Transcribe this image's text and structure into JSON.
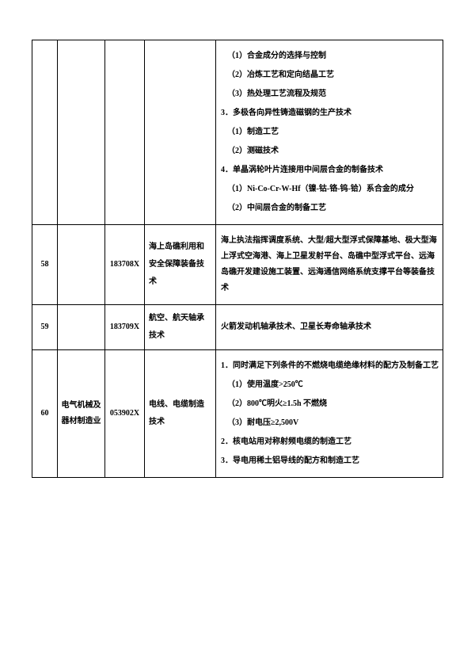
{
  "rows": [
    {
      "num": "",
      "cat": "",
      "code": "",
      "name": "",
      "desc_items": [
        {
          "lvl": 2,
          "t": "（1）合金成分的选择与控制"
        },
        {
          "lvl": 2,
          "t": "（2）冶炼工艺和定向结晶工艺"
        },
        {
          "lvl": 2,
          "t": "（3）热处理工艺流程及规范"
        },
        {
          "lvl": 1,
          "t": "3．多极各向异性铸造磁钢的生产技术"
        },
        {
          "lvl": 2,
          "t": "（1）制造工艺"
        },
        {
          "lvl": 2,
          "t": "（2）测磁技术"
        },
        {
          "lvl": 1,
          "t": "4．单晶涡轮叶片连接用中间层合金的制备技术"
        },
        {
          "lvl": 2,
          "t": "（1）Ni-Co-Cr-W-Hf（镍-钴-铬-钨-铪）系合金的成分"
        },
        {
          "lvl": 2,
          "t": "（2）中间层合金的制备工艺"
        }
      ]
    },
    {
      "num": "58",
      "cat": "",
      "code": "183708X",
      "name": "海上岛礁利用和安全保障装备技术",
      "desc_items": [
        {
          "lvl": 0,
          "t": "海上执法指挥调度系统、大型/超大型浮式保障基地、极大型海上浮式空海港、海上卫星发射平台、岛礁中型浮式平台、远海岛礁开发建设施工装置、远海通信网络系统支撑平台等装备技术"
        }
      ]
    },
    {
      "num": "59",
      "cat": "",
      "code": "183709X",
      "name": "航空、航天轴承技术",
      "desc_items": [
        {
          "lvl": 0,
          "t": "火箭发动机轴承技术、卫星长寿命轴承技术"
        }
      ]
    },
    {
      "num": "60",
      "cat": "电气机械及器材制造业",
      "code": "053902X",
      "name": "电线、电缆制造技术",
      "desc_items": [
        {
          "lvl": 1,
          "t": "1．同时满足下列条件的不燃烧电缆绝缘材料的配方及制备工艺"
        },
        {
          "lvl": 2,
          "t": "（1）使用温度>250℃"
        },
        {
          "lvl": 2,
          "t": "（2）800℃明火≥1.5h 不燃烧"
        },
        {
          "lvl": 2,
          "t": "（3）耐电压≥2,500V"
        },
        {
          "lvl": 1,
          "t": "2．核电站用对称射频电缆的制造工艺"
        },
        {
          "lvl": 1,
          "t": "3．导电用稀土铝导线的配方和制造工艺"
        }
      ]
    }
  ]
}
